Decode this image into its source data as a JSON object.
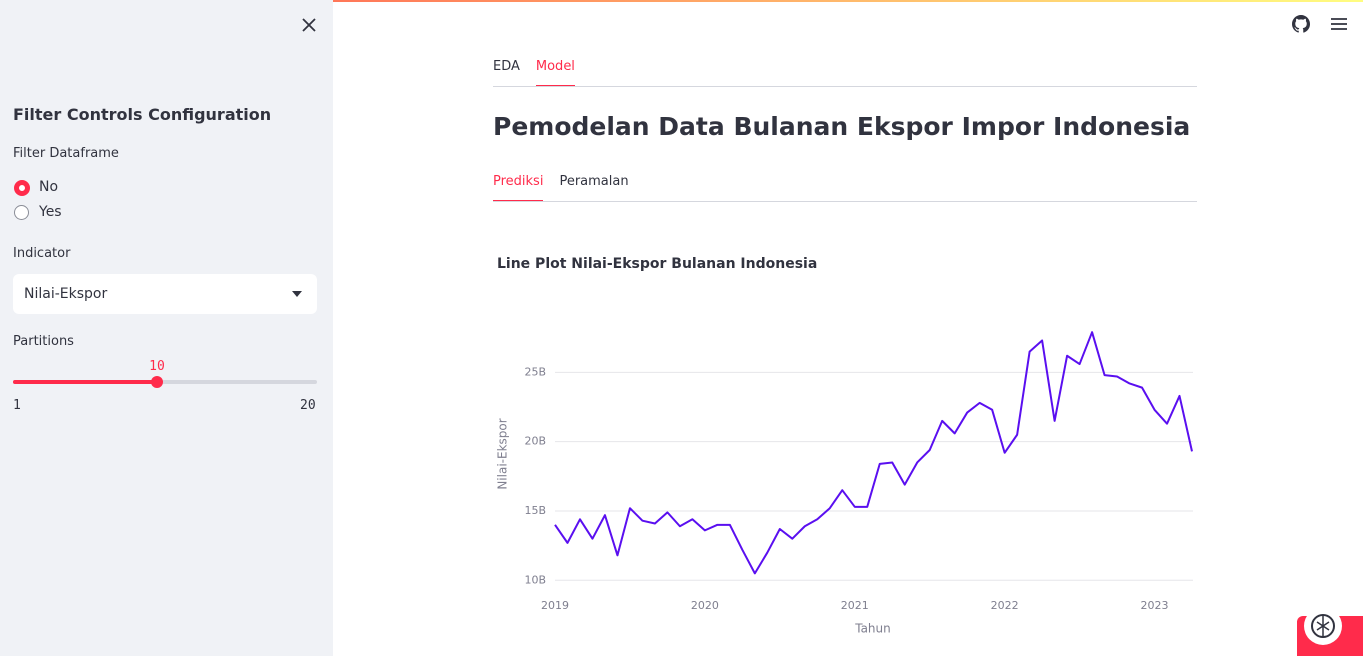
{
  "sidebar": {
    "title": "Filter Controls Configuration",
    "filter_label": "Filter Dataframe",
    "filter_options": [
      "No",
      "Yes"
    ],
    "filter_selected": 0,
    "indicator_label": "Indicator",
    "indicator_value": "Nilai-Ekspor",
    "partitions_label": "Partitions",
    "slider": {
      "value": 10,
      "min": 1,
      "max": 20
    }
  },
  "tabs": {
    "items": [
      "EDA",
      "Model"
    ],
    "active": 1
  },
  "title": "Pemodelan Data Bulanan Ekspor Impor Indonesia",
  "subtabs": {
    "items": [
      "Prediksi",
      "Peramalan"
    ],
    "active": 0
  },
  "chart_data": {
    "type": "line",
    "title": "Line Plot Nilai-Ekspor Bulanan Indonesia",
    "y_label": "Nilai-Ekspor",
    "x_label": "Tahun",
    "x": [
      "2019-01",
      "2019-02",
      "2019-03",
      "2019-04",
      "2019-05",
      "2019-06",
      "2019-07",
      "2019-08",
      "2019-09",
      "2019-10",
      "2019-11",
      "2019-12",
      "2020-01",
      "2020-02",
      "2020-03",
      "2020-04",
      "2020-05",
      "2020-06",
      "2020-07",
      "2020-08",
      "2020-09",
      "2020-10",
      "2020-11",
      "2020-12",
      "2021-01",
      "2021-02",
      "2021-03",
      "2021-04",
      "2021-05",
      "2021-06",
      "2021-07",
      "2021-08",
      "2021-09",
      "2021-10",
      "2021-11",
      "2021-12",
      "2022-01",
      "2022-02",
      "2022-03",
      "2022-04",
      "2022-05",
      "2022-06",
      "2022-07",
      "2022-08",
      "2022-09",
      "2022-10",
      "2022-11",
      "2022-12",
      "2023-01",
      "2023-02",
      "2023-03",
      "2023-04"
    ],
    "series": [
      {
        "name": "Nilai-Ekspor",
        "color": "#5a0ff0",
        "values": [
          14000000000.0,
          12700000000.0,
          14400000000.0,
          13000000000.0,
          14700000000.0,
          11800000000.0,
          15200000000.0,
          14300000000.0,
          14100000000.0,
          14900000000.0,
          13900000000.0,
          14400000000.0,
          13600000000.0,
          14000000000.0,
          14000000000.0,
          12200000000.0,
          10500000000.0,
          12000000000.0,
          13700000000.0,
          13000000000.0,
          13900000000.0,
          14400000000.0,
          15200000000.0,
          16500000000.0,
          15300000000.0,
          15300000000.0,
          18400000000.0,
          18500000000.0,
          16900000000.0,
          18500000000.0,
          19400000000.0,
          21500000000.0,
          20600000000.0,
          22100000000.0,
          22800000000.0,
          22300000000.0,
          19200000000.0,
          20500000000.0,
          26500000000.0,
          27300000000.0,
          21500000000.0,
          26200000000.0,
          25600000000.0,
          27900000000.0,
          24800000000.0,
          24700000000.0,
          24200000000.0,
          23900000000.0,
          22300000000.0,
          21300000000.0,
          23300000000.0,
          19300000000.0
        ]
      }
    ],
    "xlim": [
      "2019-01",
      "2023-04"
    ],
    "xticks": [
      "2019",
      "2020",
      "2021",
      "2022",
      "2023"
    ],
    "ylim": [
      9300000000.0,
      29500000000.0
    ],
    "yticks": [
      {
        "value": 10000000000,
        "label": "10B"
      },
      {
        "value": 15000000000,
        "label": "15B"
      },
      {
        "value": 20000000000,
        "label": "20B"
      },
      {
        "value": 25000000000,
        "label": "25B"
      }
    ],
    "grid": true
  }
}
